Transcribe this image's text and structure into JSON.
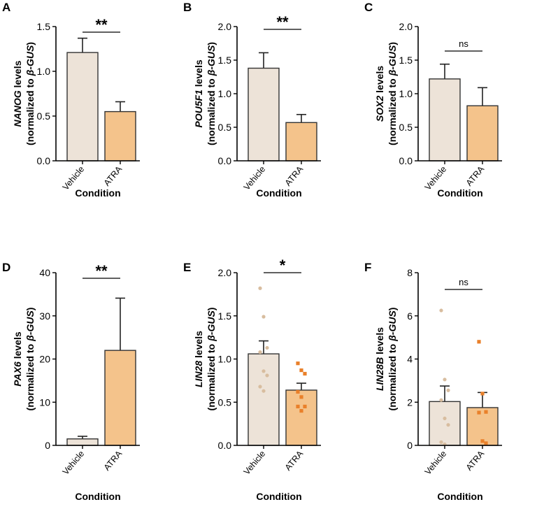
{
  "colors": {
    "vehicle_fill": "#ede3d8",
    "atra_fill": "#f4c38b",
    "vehicle_dot": "#d8bd9f",
    "atra_dot": "#e9802a",
    "axis": "#000000"
  },
  "chart_data": [
    {
      "type": "bar",
      "panel": "A",
      "gene": "NANOG",
      "ylabel_suffix": " levels",
      "ylabel2": "(normalized to ",
      "ylabel2_gene": "β-GUS",
      "xlabel": "Condition",
      "categories": [
        "Vehicle",
        "ATRA"
      ],
      "values": [
        1.21,
        0.55
      ],
      "errors": [
        0.16,
        0.11
      ],
      "ylim": [
        0,
        1.5
      ],
      "yticks": [
        0.0,
        0.5,
        1.0,
        1.5
      ],
      "ytick_labels": [
        "0.0",
        "0.5",
        "1.0",
        "1.5"
      ],
      "significance": "**",
      "points": null
    },
    {
      "type": "bar",
      "panel": "B",
      "gene": "POU5F1",
      "ylabel_suffix": " levels",
      "ylabel2": "(normalized to ",
      "ylabel2_gene": "β-GUS",
      "xlabel": "Condition",
      "categories": [
        "Vehicle",
        "ATRA"
      ],
      "values": [
        1.38,
        0.57
      ],
      "errors": [
        0.23,
        0.12
      ],
      "ylim": [
        0,
        2.0
      ],
      "yticks": [
        0,
        0.5,
        1.0,
        1.5,
        2.0
      ],
      "ytick_labels": [
        "0.0",
        "0.5",
        "1.0",
        "1.5",
        "2.0"
      ],
      "significance": "**",
      "points": null
    },
    {
      "type": "bar",
      "panel": "C",
      "gene": "SOX2",
      "ylabel_suffix": " levels",
      "ylabel2": "(normalized to ",
      "ylabel2_gene": "β-GUS",
      "xlabel": "Condition",
      "categories": [
        "Vehicle",
        "ATRA"
      ],
      "values": [
        1.22,
        0.82
      ],
      "errors": [
        0.22,
        0.27
      ],
      "ylim": [
        0,
        2.0
      ],
      "yticks": [
        0,
        0.5,
        1.0,
        1.5,
        2.0
      ],
      "ytick_labels": [
        "0.0",
        "0.5",
        "1.0",
        "1.5",
        "2.0"
      ],
      "significance": "ns",
      "points": null
    },
    {
      "type": "bar",
      "panel": "D",
      "gene": "PAX6",
      "ylabel_suffix": " levels",
      "ylabel2": "(normalized to ",
      "ylabel2_gene": "β-GUS",
      "xlabel": "Condition",
      "categories": [
        "Vehicle",
        "ATRA"
      ],
      "values": [
        1.5,
        22.0
      ],
      "errors": [
        0.6,
        12.1
      ],
      "ylim": [
        0,
        40
      ],
      "yticks": [
        0,
        10,
        20,
        30,
        40
      ],
      "ytick_labels": [
        "0",
        "10",
        "20",
        "30",
        "40"
      ],
      "significance": "**",
      "points": null
    },
    {
      "type": "bar",
      "panel": "E",
      "gene": "LIN28",
      "ylabel_suffix": " levels",
      "ylabel2": "(normalized to ",
      "ylabel2_gene": "β-GUS",
      "xlabel": "Condition",
      "categories": [
        "Vehicle",
        "ATRA"
      ],
      "values": [
        1.06,
        0.64
      ],
      "errors": [
        0.15,
        0.08
      ],
      "ylim": [
        0,
        2.0
      ],
      "yticks": [
        0,
        0.5,
        1.0,
        1.5,
        2.0
      ],
      "ytick_labels": [
        "0.0",
        "0.5",
        "1.0",
        "1.5",
        "2.0"
      ],
      "significance": "*",
      "points": [
        [
          1.82,
          1.49,
          1.13,
          1.08,
          0.86,
          0.81,
          0.68,
          0.63
        ],
        [
          0.95,
          0.87,
          0.83,
          0.62,
          0.56,
          0.45,
          0.45,
          0.4
        ]
      ]
    },
    {
      "type": "bar",
      "panel": "F",
      "gene": "LIN28B",
      "ylabel_suffix": " levels",
      "ylabel2": "(normalized to ",
      "ylabel2_gene": "β-GUS",
      "xlabel": "Condition",
      "categories": [
        "Vehicle",
        "ATRA"
      ],
      "values": [
        2.03,
        1.75
      ],
      "errors": [
        0.72,
        0.7
      ],
      "ylim": [
        0,
        8
      ],
      "yticks": [
        0,
        2,
        4,
        6,
        8
      ],
      "ytick_labels": [
        "0",
        "2",
        "4",
        "6",
        "8"
      ],
      "significance": "ns",
      "points": [
        [
          6.25,
          3.05,
          2.55,
          2.1,
          1.25,
          0.95,
          0.15,
          0.05
        ],
        [
          4.8,
          2.4,
          1.55,
          1.52,
          0.2,
          0.1
        ]
      ]
    }
  ]
}
